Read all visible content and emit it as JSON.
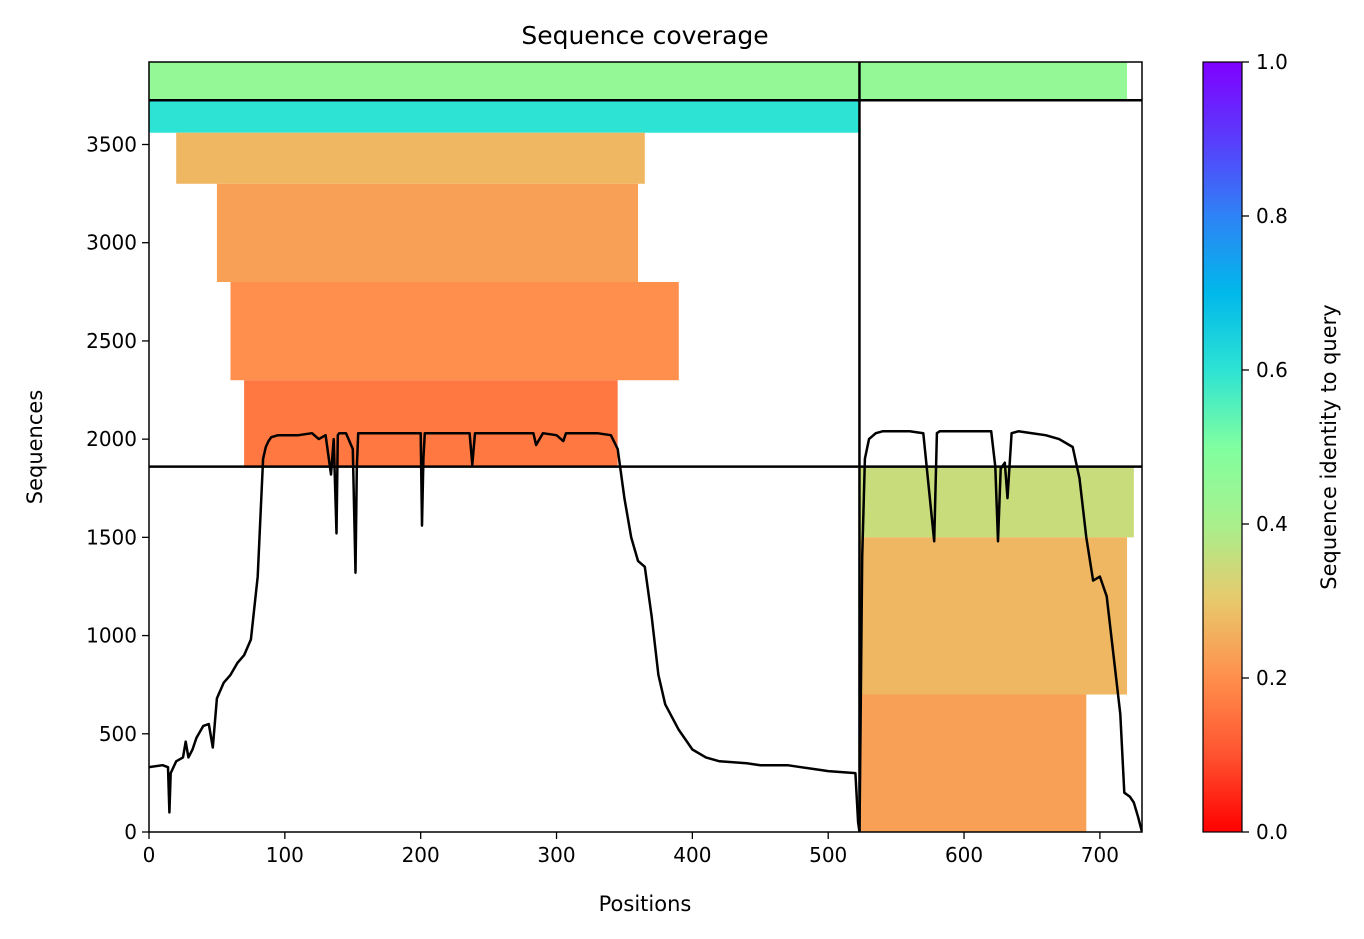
{
  "chart_data": {
    "type": "heatmap",
    "title": "Sequence coverage",
    "xlabel": "Positions",
    "ylabel": "Sequences",
    "xlim": [
      0,
      731
    ],
    "ylim": [
      0,
      3920
    ],
    "xticks": [
      0,
      100,
      200,
      300,
      400,
      500,
      600,
      700
    ],
    "yticks": [
      0,
      500,
      1000,
      1500,
      2000,
      2500,
      3000,
      3500
    ],
    "colorbar": {
      "label": "Sequence identity to query",
      "range": [
        0,
        1
      ],
      "ticks": [
        0.0,
        0.2,
        0.4,
        0.6,
        0.8,
        1.0
      ],
      "tick_labels": [
        "0.0",
        "0.2",
        "0.4",
        "0.6",
        "0.8",
        "1.0"
      ],
      "colormap": "rainbow_r"
    },
    "dividers": {
      "vertical_x": [
        523
      ],
      "horizontal_y": [
        1860,
        3725
      ]
    },
    "coverage_blocks": [
      {
        "x": [
          0,
          523
        ],
        "y": [
          3725,
          3920
        ],
        "identity": 0.45
      },
      {
        "x": [
          0,
          523
        ],
        "y": [
          3560,
          3725
        ],
        "identity": 0.6
      },
      {
        "x": [
          523,
          720
        ],
        "y": [
          3725,
          3920
        ],
        "identity": 0.45
      },
      {
        "x": [
          20,
          365
        ],
        "y": [
          3300,
          3560
        ],
        "identity": 0.27
      },
      {
        "x": [
          50,
          360
        ],
        "y": [
          2800,
          3300
        ],
        "identity": 0.23
      },
      {
        "x": [
          60,
          390
        ],
        "y": [
          2300,
          2800
        ],
        "identity": 0.2
      },
      {
        "x": [
          70,
          345
        ],
        "y": [
          1860,
          2300
        ],
        "identity": 0.16
      },
      {
        "x": [
          523,
          725
        ],
        "y": [
          1500,
          1860
        ],
        "identity": 0.35
      },
      {
        "x": [
          523,
          720
        ],
        "y": [
          700,
          1500
        ],
        "identity": 0.27
      },
      {
        "x": [
          523,
          690
        ],
        "y": [
          0,
          700
        ],
        "identity": 0.23
      }
    ],
    "coverage_line": {
      "x": [
        0,
        10,
        14,
        15,
        16,
        20,
        25,
        27,
        29,
        32,
        35,
        40,
        44,
        47,
        50,
        55,
        60,
        65,
        70,
        75,
        80,
        84,
        86,
        88,
        90,
        95,
        100,
        110,
        120,
        125,
        130,
        134,
        136,
        138,
        139,
        140,
        142,
        145,
        150,
        152,
        153,
        154,
        155,
        157,
        160,
        170,
        180,
        190,
        200,
        201,
        202,
        203,
        205,
        210,
        220,
        230,
        236,
        238,
        240,
        250,
        270,
        283,
        285,
        290,
        300,
        305,
        307,
        310,
        320,
        330,
        340,
        345,
        350,
        355,
        360,
        365,
        370,
        375,
        380,
        390,
        400,
        410,
        420,
        440,
        450,
        470,
        480,
        490,
        500,
        510,
        520,
        522,
        523,
        525,
        527,
        530,
        535,
        540,
        550,
        560,
        570,
        578,
        580,
        582,
        590,
        600,
        610,
        620,
        623,
        625,
        627,
        630,
        632,
        635,
        640,
        650,
        660,
        670,
        680,
        685,
        690,
        695,
        700,
        705,
        710,
        715,
        718,
        722,
        725,
        728,
        731
      ],
      "y": [
        330,
        340,
        330,
        100,
        300,
        360,
        380,
        460,
        380,
        420,
        480,
        540,
        550,
        430,
        680,
        760,
        800,
        860,
        900,
        980,
        1300,
        1900,
        1960,
        1990,
        2010,
        2020,
        2020,
        2020,
        2030,
        2000,
        2020,
        1820,
        2000,
        1520,
        2020,
        2030,
        2030,
        2030,
        1950,
        1320,
        1850,
        2030,
        2030,
        2030,
        2030,
        2030,
        2030,
        2030,
        2030,
        1560,
        1900,
        2030,
        2030,
        2030,
        2030,
        2030,
        2030,
        1870,
        2030,
        2030,
        2030,
        2030,
        1970,
        2030,
        2020,
        1990,
        2030,
        2030,
        2030,
        2030,
        2020,
        1950,
        1700,
        1500,
        1380,
        1350,
        1100,
        800,
        650,
        520,
        420,
        380,
        360,
        350,
        340,
        340,
        330,
        320,
        310,
        305,
        300,
        50,
        0,
        1400,
        1900,
        2000,
        2030,
        2040,
        2040,
        2040,
        2030,
        1480,
        2030,
        2040,
        2040,
        2040,
        2040,
        2040,
        1860,
        1480,
        1850,
        1880,
        1700,
        2030,
        2040,
        2030,
        2020,
        2000,
        1960,
        1800,
        1500,
        1280,
        1300,
        1200,
        900,
        600,
        200,
        180,
        150,
        80,
        0
      ]
    }
  }
}
